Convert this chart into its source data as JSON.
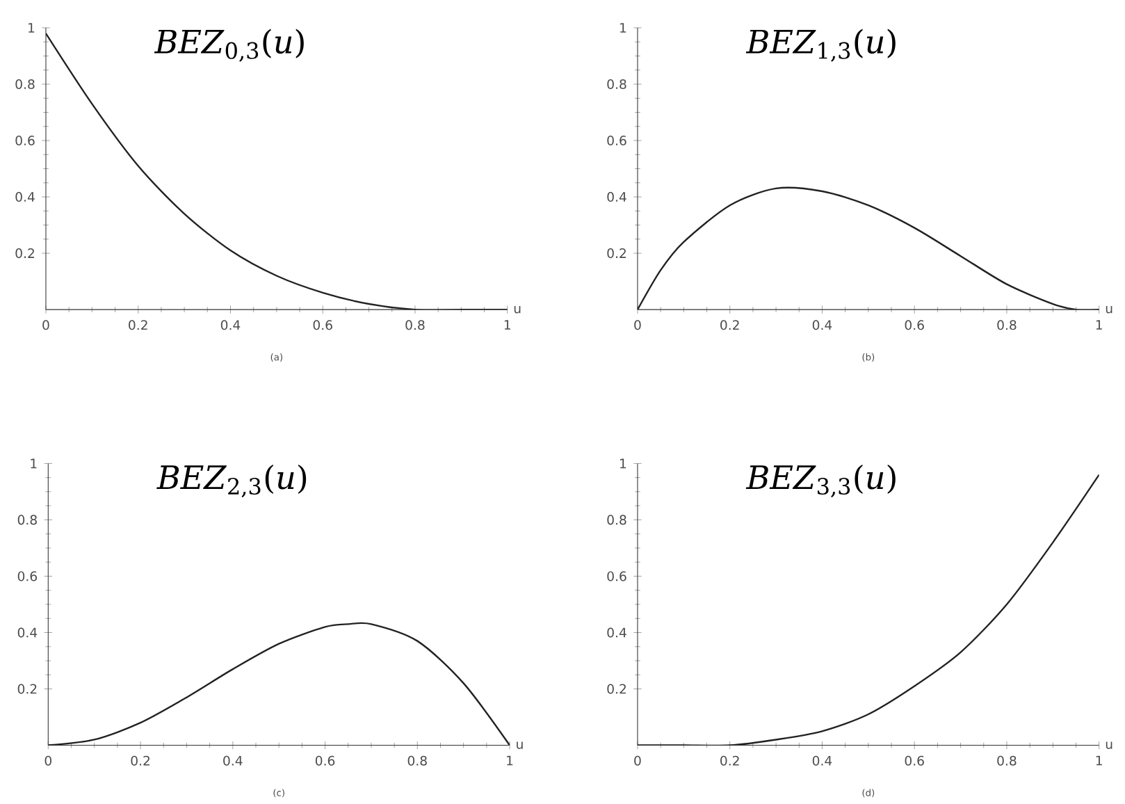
{
  "chart_data": [
    {
      "type": "line",
      "title": "*BEZ*$_{0,3}$(*u*)",
      "xlabel": "u",
      "annotations": [
        "(a)"
      ],
      "color": "#222222",
      "marker": "none",
      "line_style": "solid",
      "grid": false,
      "x": [
        0,
        0.1,
        0.2,
        0.3,
        0.4,
        0.5,
        0.6,
        0.7,
        0.8,
        0.9,
        1
      ],
      "values": [
        0.98,
        0.73,
        0.51,
        0.34,
        0.21,
        0.12,
        0.06,
        0.02,
        0.0,
        0.0,
        0.0
      ],
      "xlim": [
        0,
        1
      ],
      "ylim": [
        0,
        1
      ],
      "xticks": [
        0,
        0.2,
        0.4,
        0.6,
        0.8,
        1
      ],
      "yticks": [
        0.2,
        0.4,
        0.6,
        0.8,
        1
      ]
    },
    {
      "type": "line",
      "title": "*BEZ*$_{1,3}$(*u*)",
      "xlabel": "u",
      "annotations": [
        "(b)"
      ],
      "color": "#222222",
      "marker": "none",
      "line_style": "solid",
      "grid": false,
      "x": [
        0,
        0.05,
        0.1,
        0.2,
        0.3,
        0.4,
        0.5,
        0.6,
        0.7,
        0.8,
        0.9,
        0.95,
        1
      ],
      "values": [
        0.0,
        0.14,
        0.24,
        0.37,
        0.43,
        0.42,
        0.37,
        0.29,
        0.19,
        0.09,
        0.02,
        0.0,
        0.0
      ],
      "xlim": [
        0,
        1
      ],
      "ylim": [
        0,
        1
      ],
      "xticks": [
        0,
        0.2,
        0.4,
        0.6,
        0.8,
        1
      ],
      "yticks": [
        0.2,
        0.4,
        0.6,
        0.8,
        1
      ]
    },
    {
      "type": "line",
      "title": "*BEZ*$_{2,3}$(*u*)",
      "xlabel": "u",
      "annotations": [
        "(c)"
      ],
      "color": "#222222",
      "marker": "none",
      "line_style": "solid",
      "grid": false,
      "x": [
        0,
        0.1,
        0.2,
        0.3,
        0.4,
        0.5,
        0.6,
        0.65,
        0.7,
        0.8,
        0.9,
        1
      ],
      "values": [
        0.0,
        0.02,
        0.08,
        0.17,
        0.27,
        0.36,
        0.42,
        0.43,
        0.43,
        0.37,
        0.22,
        0.0
      ],
      "xlim": [
        0,
        1
      ],
      "ylim": [
        0,
        1
      ],
      "xticks": [
        0,
        0.2,
        0.4,
        0.6,
        0.8,
        1
      ],
      "yticks": [
        0.2,
        0.4,
        0.6,
        0.8,
        1
      ]
    },
    {
      "type": "line",
      "title": "*BEZ*$_{3,3}$(*u*)",
      "xlabel": "u",
      "annotations": [
        "(d)"
      ],
      "color": "#222222",
      "marker": "none",
      "line_style": "solid",
      "grid": false,
      "x": [
        0,
        0.1,
        0.2,
        0.3,
        0.4,
        0.5,
        0.6,
        0.7,
        0.8,
        0.9,
        1
      ],
      "values": [
        0.0,
        0.0,
        0.0,
        0.02,
        0.05,
        0.11,
        0.21,
        0.33,
        0.5,
        0.72,
        0.96
      ],
      "xlim": [
        0,
        1
      ],
      "ylim": [
        0,
        1
      ],
      "xticks": [
        0,
        0.2,
        0.4,
        0.6,
        0.8,
        1
      ],
      "yticks": [
        0.2,
        0.4,
        0.6,
        0.8,
        1
      ]
    }
  ]
}
